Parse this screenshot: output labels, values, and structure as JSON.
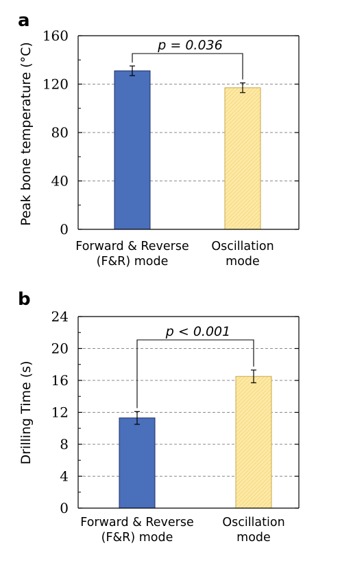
{
  "chart_data": [
    {
      "panel_label": "a",
      "type": "bar",
      "ylabel": "Peak bone temperature (°C)",
      "categories": [
        [
          "Forward & Reverse",
          "(F&R) mode"
        ],
        [
          "Oscillation",
          "mode"
        ]
      ],
      "values": [
        131,
        117
      ],
      "errors": [
        4,
        4
      ],
      "bar_colors": [
        "#4a6fbb",
        "#fbe7a1"
      ],
      "ylim": [
        0,
        160
      ],
      "yticks": [
        0,
        40,
        80,
        120,
        160
      ],
      "grid": true,
      "annotation": "p = 0.036"
    },
    {
      "panel_label": "b",
      "type": "bar",
      "ylabel": "Drilling Time (s)",
      "categories": [
        [
          "Forward & Reverse",
          "(F&R) mode"
        ],
        [
          "Oscillation",
          "mode"
        ]
      ],
      "values": [
        11.3,
        16.5
      ],
      "errors": [
        0.8,
        0.8
      ],
      "bar_colors": [
        "#4a6fbb",
        "#fbe7a1"
      ],
      "ylim": [
        0,
        24
      ],
      "yticks": [
        0,
        4,
        8,
        12,
        16,
        20,
        24
      ],
      "grid": true,
      "annotation": "p < 0.001"
    }
  ]
}
